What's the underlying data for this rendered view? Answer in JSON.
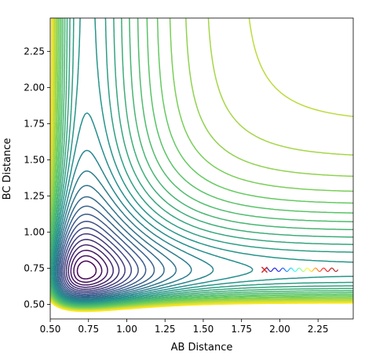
{
  "chart_data": {
    "type": "contour",
    "title": "",
    "xlabel": "AB Distance",
    "ylabel": "BC Distance",
    "xlim": [
      0.5,
      2.48
    ],
    "ylim": [
      0.4,
      2.48
    ],
    "xticks": [
      0.5,
      0.75,
      1.0,
      1.25,
      1.5,
      1.75,
      2.0,
      2.25
    ],
    "xtick_labels": [
      "0.50",
      "0.75",
      "1.00",
      "1.25",
      "1.50",
      "1.75",
      "2.00",
      "2.25"
    ],
    "yticks": [
      0.5,
      0.75,
      1.0,
      1.25,
      1.5,
      1.75,
      2.0,
      2.25
    ],
    "ytick_labels": [
      "0.50",
      "0.75",
      "1.00",
      "1.25",
      "1.50",
      "1.75",
      "2.00",
      "2.25"
    ],
    "grid": false,
    "legend": "none",
    "colormap": "viridis",
    "colormap_stops": [
      "#440154",
      "#3b528b",
      "#21918c",
      "#5ec962",
      "#fde725"
    ],
    "contour_levels": 30,
    "trajectory": {
      "start": [
        1.9,
        0.74
      ],
      "end": [
        2.38,
        0.74
      ],
      "oscillation_amplitude": 0.012,
      "oscillation_cycles": 9,
      "colormap": "jet",
      "start_marker": "x",
      "start_marker_color": "#d62728"
    }
  }
}
